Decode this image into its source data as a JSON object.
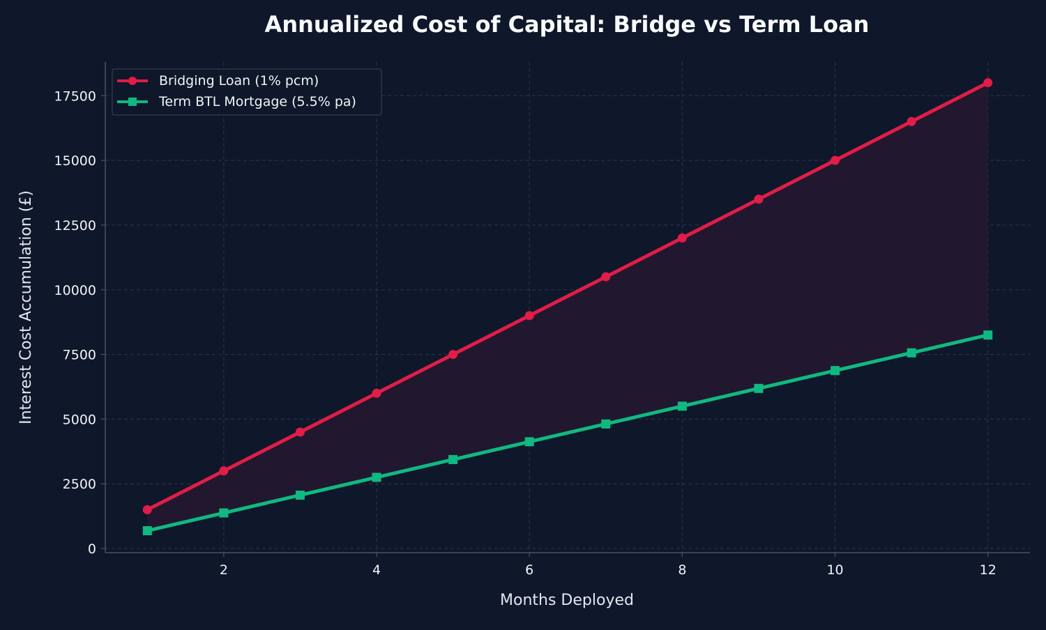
{
  "chart_data": {
    "type": "line",
    "title": "Annualized Cost of Capital: Bridge vs Term Loan",
    "xlabel": "Months Deployed",
    "ylabel": "Interest Cost Accumulation (£)",
    "x": [
      1,
      2,
      3,
      4,
      5,
      6,
      7,
      8,
      9,
      10,
      11,
      12
    ],
    "xlim": [
      0.45,
      12.55
    ],
    "ylim": [
      -160,
      18800
    ],
    "xticks": [
      2,
      4,
      6,
      8,
      10,
      12
    ],
    "yticks": [
      0,
      2500,
      5000,
      7500,
      10000,
      12500,
      15000,
      17500
    ],
    "grid": true,
    "legend_position": "top-left",
    "fill_between": true,
    "series": [
      {
        "name": "Bridging Loan (1% pcm)",
        "color": "#e11d48",
        "marker": "circle",
        "values": [
          1500,
          3000,
          4500,
          6000,
          7500,
          9000,
          10500,
          12000,
          13500,
          15000,
          16500,
          18000
        ]
      },
      {
        "name": "Term BTL Mortgage (5.5% pa)",
        "color": "#10b981",
        "marker": "square",
        "values": [
          687.5,
          1375,
          2062.5,
          2750,
          3437.5,
          4125,
          4812.5,
          5500,
          6187.5,
          6875,
          7562.5,
          8250
        ]
      }
    ]
  },
  "colors": {
    "background": "#0f172a",
    "grid": "#27324a",
    "axis": "#475569",
    "text": "#f1f5f9",
    "fill": "#231830"
  }
}
